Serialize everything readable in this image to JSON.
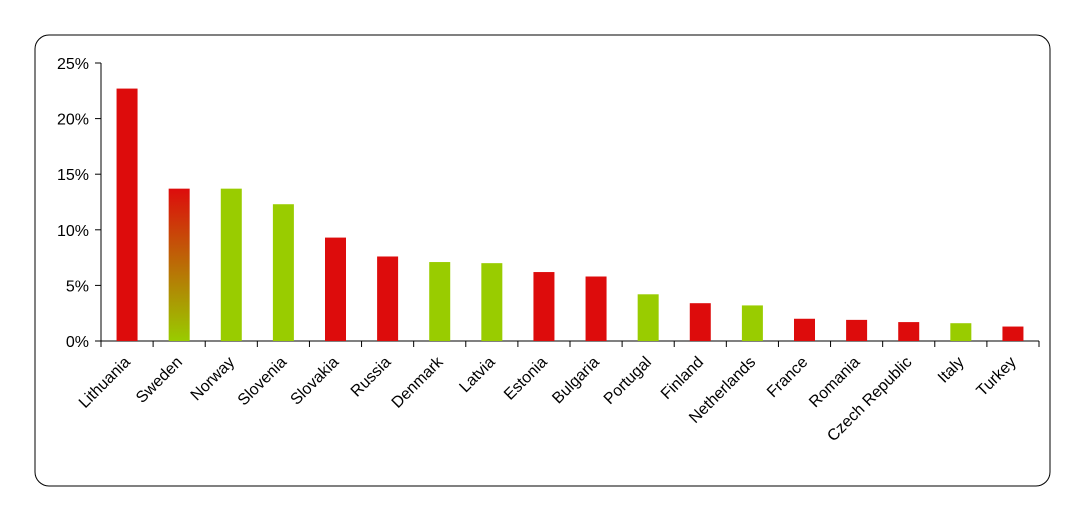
{
  "chart_data": {
    "type": "bar",
    "categories": [
      "Lithuania",
      "Sweden",
      "Norway",
      "Slovenia",
      "Slovakia",
      "Russia",
      "Denmark",
      "Latvia",
      "Estonia",
      "Bulgaria",
      "Portugal",
      "Finland",
      "Netherlands",
      "France",
      "Romania",
      "Czech Republic",
      "Italy",
      "Turkey"
    ],
    "values": [
      22.7,
      13.7,
      13.7,
      12.3,
      9.3,
      7.6,
      7.1,
      7.0,
      6.2,
      5.8,
      4.2,
      3.4,
      3.2,
      2.0,
      1.9,
      1.7,
      1.6,
      1.3
    ],
    "colors": [
      "#dd0c0c",
      [
        "#dd0c0c",
        "#99cc00"
      ],
      "#99cc00",
      "#99cc00",
      "#dd0c0c",
      "#dd0c0c",
      "#99cc00",
      "#99cc00",
      "#dd0c0c",
      "#dd0c0c",
      "#99cc00",
      "#dd0c0c",
      "#99cc00",
      "#dd0c0c",
      "#dd0c0c",
      "#dd0c0c",
      "#99cc00",
      "#dd0c0c"
    ],
    "ylim": [
      0,
      25
    ],
    "yticks": [
      {
        "value": 0,
        "label": "0%"
      },
      {
        "value": 5,
        "label": "5%"
      },
      {
        "value": 10,
        "label": "10%"
      },
      {
        "value": 15,
        "label": "15%"
      },
      {
        "value": 20,
        "label": "20%"
      },
      {
        "value": 25,
        "label": "25%"
      }
    ],
    "grid": false
  }
}
